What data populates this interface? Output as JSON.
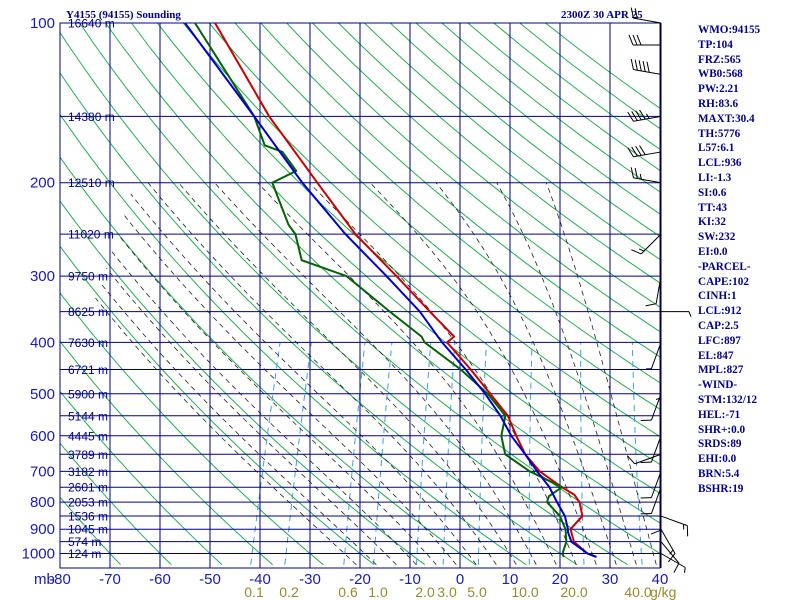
{
  "header": {
    "title_left": "Y4155 (94155) Sounding",
    "title_right": "2300Z 30 APR 25"
  },
  "indices": [
    "WMO:94155",
    "TP:104",
    "FRZ:565",
    "WB0:568",
    "PW:2.21",
    "RH:83.6",
    "MAXT:30.4",
    "TH:5776",
    "L57:6.1",
    "LCL:936",
    "LI:-1.3",
    "SI:0.6",
    "TT:43",
    "KI:32",
    "SW:232",
    "EI:0.0",
    "-PARCEL-",
    "CAPE:102",
    "CINH:1",
    "LCL:912",
    "CAP:2.5",
    "LFC:897",
    "EL:847",
    "MPL:827",
    "-WIND-",
    "STM:132/12",
    "HEL:-71",
    "SHR+:0.0",
    "SRDS:89",
    "EHI:0.0",
    "BRN:5.4",
    "BSHR:19"
  ],
  "colors": {
    "grid": "#00008b",
    "dry_adiabat": "#22b14c",
    "moist_adiabat": "#222222",
    "mixing_ratio": "#3aa0e0",
    "temperature": "#cc0000",
    "dewpoint": "#006400",
    "parcel": "#0000cc",
    "wind_barb": "#000000",
    "mixing_label": "#9a8a2a"
  },
  "chart_data": {
    "type": "skew-t",
    "x_unit_label": "mb",
    "mixing_ratio_unit": "g/kg",
    "pressure_ticks": [
      100,
      200,
      300,
      400,
      500,
      600,
      700,
      800,
      900,
      1000
    ],
    "pressure_lines": [
      100,
      150,
      200,
      250,
      300,
      350,
      400,
      450,
      500,
      550,
      600,
      650,
      700,
      750,
      800,
      850,
      900,
      950,
      1000
    ],
    "height_labels": [
      {
        "p": 100,
        "label": "16640 m"
      },
      {
        "p": 150,
        "label": "14380 m"
      },
      {
        "p": 200,
        "label": "12510 m"
      },
      {
        "p": 250,
        "label": "11020 m"
      },
      {
        "p": 300,
        "label": "9750 m"
      },
      {
        "p": 350,
        "label": "8625 m"
      },
      {
        "p": 400,
        "label": "7630 m"
      },
      {
        "p": 450,
        "label": "6721 m"
      },
      {
        "p": 500,
        "label": "5900 m"
      },
      {
        "p": 550,
        "label": "5144 m"
      },
      {
        "p": 600,
        "label": "4445 m"
      },
      {
        "p": 650,
        "label": "3789 m"
      },
      {
        "p": 700,
        "label": "3182 m"
      },
      {
        "p": 750,
        "label": "2601 m"
      },
      {
        "p": 800,
        "label": "2053 m"
      },
      {
        "p": 850,
        "label": "1536 m"
      },
      {
        "p": 900,
        "label": "1045 m"
      },
      {
        "p": 950,
        "label": "574 m"
      },
      {
        "p": 1000,
        "label": "124 m"
      }
    ],
    "temperature_ticks": [
      -80,
      -70,
      -60,
      -50,
      -40,
      -30,
      -20,
      -10,
      0,
      10,
      20,
      30,
      40
    ],
    "temperature_tick_labels": [
      "-80",
      "-70",
      "-60",
      "-50",
      "-40",
      "-30",
      "-20",
      "-10",
      "0",
      "10",
      "20",
      "30",
      "40"
    ],
    "mixing_ratio_labels": [
      "0.1",
      "0.2",
      "0.6",
      "1.0",
      "2.0",
      "3.0",
      "5.0",
      "10.0",
      "20.0",
      "40.0"
    ],
    "mixing_ratio_values": [
      0.1,
      0.2,
      0.6,
      1.0,
      2.0,
      3.0,
      5.0,
      10.0,
      20.0,
      40.0
    ],
    "series": [
      {
        "key": "temperature",
        "p": [
          1015,
          1000,
          950,
          900,
          850,
          800,
          775,
          750,
          700,
          650,
          600,
          550,
          500,
          450,
          400,
          390,
          350,
          300,
          250,
          200,
          150,
          100
        ],
        "t": [
          27.5,
          25.5,
          22,
          20.5,
          22,
          20.5,
          19,
          16,
          10.5,
          6.5,
          3.5,
          0.5,
          -4.5,
          -10,
          -16.5,
          -15.5,
          -22,
          -31,
          -42,
          -53,
          -67,
          -84
        ]
      },
      {
        "key": "dewpoint",
        "p": [
          1015,
          1000,
          950,
          900,
          850,
          800,
          780,
          750,
          700,
          650,
          600,
          550,
          500,
          450,
          400,
          390,
          350,
          300,
          280,
          250,
          240,
          200,
          190,
          175,
          170,
          150,
          100
        ],
        "t": [
          21,
          20.5,
          20.5,
          19.5,
          17.5,
          14,
          14,
          16,
          8.5,
          2.5,
          0.5,
          0,
          -5,
          -12,
          -21,
          -22,
          -30,
          -41,
          -51,
          -54,
          -56,
          -62,
          -58,
          -62,
          -66,
          -70,
          -88
        ]
      },
      {
        "key": "parcel",
        "p": [
          1015,
          1000,
          950,
          912,
          897,
          850,
          800,
          750,
          700,
          650,
          600,
          550,
          500,
          450,
          400,
          350,
          300,
          250,
          200,
          150,
          100
        ],
        "t": [
          27.5,
          25.5,
          21.5,
          20.2,
          19.9,
          18.5,
          16,
          13.5,
          10,
          6.5,
          2.5,
          -1,
          -5.5,
          -11,
          -17.5,
          -24,
          -33,
          -44,
          -56,
          -70,
          -90
        ]
      }
    ],
    "wind_barbs": [
      {
        "p": 1000,
        "dir": 120,
        "spd": 5
      },
      {
        "p": 950,
        "dir": 140,
        "spd": 10
      },
      {
        "p": 900,
        "dir": 150,
        "spd": 15
      },
      {
        "p": 850,
        "dir": 110,
        "spd": 15
      },
      {
        "p": 800,
        "dir": 180,
        "spd": 10
      },
      {
        "p": 750,
        "dir": 200,
        "spd": 10
      },
      {
        "p": 700,
        "dir": 200,
        "spd": 10
      },
      {
        "p": 650,
        "dir": 250,
        "spd": 10
      },
      {
        "p": 600,
        "dir": 200,
        "spd": 10
      },
      {
        "p": 500,
        "dir": 200,
        "spd": 10
      },
      {
        "p": 450,
        "dir": 180,
        "spd": 5
      },
      {
        "p": 400,
        "dir": 200,
        "spd": 5
      },
      {
        "p": 350,
        "dir": 90,
        "spd": 5
      },
      {
        "p": 300,
        "dir": 190,
        "spd": 10
      },
      {
        "p": 250,
        "dir": 225,
        "spd": 15
      },
      {
        "p": 200,
        "dir": 280,
        "spd": 25
      },
      {
        "p": 175,
        "dir": 260,
        "spd": 40
      },
      {
        "p": 150,
        "dir": 260,
        "spd": 45
      },
      {
        "p": 125,
        "dir": 280,
        "spd": 50
      },
      {
        "p": 110,
        "dir": 270,
        "spd": 30
      },
      {
        "p": 100,
        "dir": 280,
        "spd": 20
      }
    ]
  }
}
